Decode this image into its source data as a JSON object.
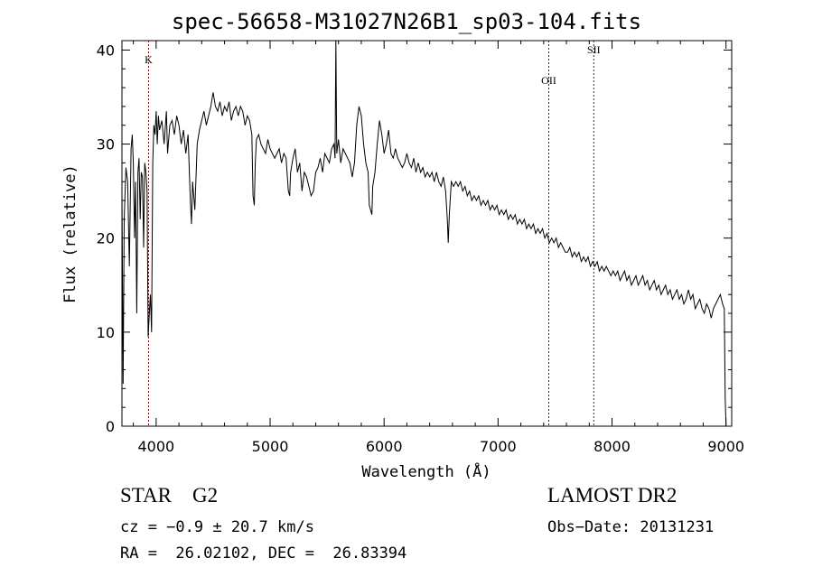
{
  "title": "spec-56658-M31027N26B1_sp03-104.fits",
  "info": {
    "object_class": "STAR",
    "subclass": "G2",
    "survey": "LAMOST DR2",
    "cz_line": "cz = −0.9 ± 20.7 km/s",
    "obs_date_line": "Obs−Date: 20131231",
    "radec_line": "RA =  26.02102, DEC =  26.83394"
  },
  "chart_data": {
    "type": "line",
    "title": "spec-56658-M31027N26B1_sp03-104.fits",
    "xlabel": "Wavelength (Å)",
    "ylabel": "Flux (relative)",
    "xlim": [
      3700,
      9050
    ],
    "ylim": [
      0,
      41
    ],
    "xticks": [
      4000,
      5000,
      6000,
      7000,
      8000,
      9000
    ],
    "yticks": [
      0,
      10,
      20,
      30,
      40
    ],
    "grid": false,
    "line_color": "#000000",
    "marker_color": "#8b0000",
    "lines": [
      {
        "label": "K",
        "x": 3934
      },
      {
        "label": "OII",
        "x": 7445
      },
      {
        "label": "SII",
        "x": 7840
      }
    ],
    "series": [
      {
        "points": [
          [
            3700,
            25.0
          ],
          [
            3710,
            4.5
          ],
          [
            3720,
            22.0
          ],
          [
            3735,
            27.5
          ],
          [
            3750,
            26.0
          ],
          [
            3765,
            17.0
          ],
          [
            3780,
            29.5
          ],
          [
            3790,
            31.0
          ],
          [
            3800,
            28.0
          ],
          [
            3810,
            20.0
          ],
          [
            3820,
            26.0
          ],
          [
            3830,
            12.0
          ],
          [
            3840,
            27.0
          ],
          [
            3850,
            28.5
          ],
          [
            3860,
            22.0
          ],
          [
            3870,
            27.0
          ],
          [
            3880,
            26.5
          ],
          [
            3890,
            19.0
          ],
          [
            3900,
            28.0
          ],
          [
            3910,
            27.0
          ],
          [
            3920,
            25.0
          ],
          [
            3930,
            9.5
          ],
          [
            3940,
            12.0
          ],
          [
            3950,
            14.0
          ],
          [
            3960,
            10.0
          ],
          [
            3970,
            28.0
          ],
          [
            3980,
            32.0
          ],
          [
            3990,
            31.0
          ],
          [
            4000,
            33.5
          ],
          [
            4010,
            30.0
          ],
          [
            4020,
            33.0
          ],
          [
            4030,
            31.5
          ],
          [
            4050,
            32.5
          ],
          [
            4070,
            30.0
          ],
          [
            4090,
            33.5
          ],
          [
            4100,
            29.0
          ],
          [
            4120,
            32.0
          ],
          [
            4140,
            32.5
          ],
          [
            4160,
            31.0
          ],
          [
            4180,
            33.0
          ],
          [
            4200,
            32.0
          ],
          [
            4220,
            30.0
          ],
          [
            4240,
            31.5
          ],
          [
            4260,
            29.0
          ],
          [
            4280,
            31.0
          ],
          [
            4300,
            24.0
          ],
          [
            4310,
            21.5
          ],
          [
            4320,
            26.0
          ],
          [
            4340,
            23.0
          ],
          [
            4360,
            30.0
          ],
          [
            4380,
            31.5
          ],
          [
            4400,
            32.5
          ],
          [
            4420,
            33.5
          ],
          [
            4440,
            32.0
          ],
          [
            4460,
            33.0
          ],
          [
            4480,
            34.0
          ],
          [
            4500,
            35.5
          ],
          [
            4520,
            34.0
          ],
          [
            4540,
            33.5
          ],
          [
            4560,
            34.5
          ],
          [
            4580,
            33.0
          ],
          [
            4600,
            34.0
          ],
          [
            4620,
            33.5
          ],
          [
            4640,
            34.5
          ],
          [
            4660,
            32.5
          ],
          [
            4680,
            33.5
          ],
          [
            4700,
            34.0
          ],
          [
            4720,
            33.0
          ],
          [
            4740,
            34.0
          ],
          [
            4760,
            33.5
          ],
          [
            4780,
            32.0
          ],
          [
            4800,
            33.0
          ],
          [
            4820,
            32.5
          ],
          [
            4840,
            31.0
          ],
          [
            4850,
            24.5
          ],
          [
            4861,
            23.5
          ],
          [
            4870,
            28.0
          ],
          [
            4880,
            30.5
          ],
          [
            4900,
            31.0
          ],
          [
            4920,
            30.0
          ],
          [
            4940,
            29.5
          ],
          [
            4960,
            29.0
          ],
          [
            4980,
            30.5
          ],
          [
            5000,
            29.5
          ],
          [
            5020,
            29.0
          ],
          [
            5040,
            28.5
          ],
          [
            5060,
            29.0
          ],
          [
            5080,
            29.5
          ],
          [
            5100,
            28.0
          ],
          [
            5120,
            29.0
          ],
          [
            5140,
            28.5
          ],
          [
            5160,
            25.0
          ],
          [
            5172,
            24.5
          ],
          [
            5180,
            27.0
          ],
          [
            5200,
            28.5
          ],
          [
            5220,
            29.5
          ],
          [
            5240,
            27.0
          ],
          [
            5260,
            28.0
          ],
          [
            5280,
            25.0
          ],
          [
            5300,
            27.0
          ],
          [
            5320,
            26.5
          ],
          [
            5340,
            25.5
          ],
          [
            5360,
            24.5
          ],
          [
            5380,
            25.0
          ],
          [
            5400,
            27.0
          ],
          [
            5420,
            27.5
          ],
          [
            5440,
            28.5
          ],
          [
            5460,
            27.0
          ],
          [
            5480,
            29.0
          ],
          [
            5500,
            28.5
          ],
          [
            5520,
            28.0
          ],
          [
            5540,
            29.5
          ],
          [
            5560,
            30.0
          ],
          [
            5570,
            28.5
          ],
          [
            5577,
            41.0
          ],
          [
            5585,
            29.0
          ],
          [
            5600,
            30.5
          ],
          [
            5620,
            28.0
          ],
          [
            5640,
            29.5
          ],
          [
            5660,
            29.0
          ],
          [
            5680,
            28.5
          ],
          [
            5700,
            28.0
          ],
          [
            5720,
            26.5
          ],
          [
            5740,
            28.0
          ],
          [
            5760,
            32.0
          ],
          [
            5780,
            34.0
          ],
          [
            5800,
            33.0
          ],
          [
            5820,
            30.0
          ],
          [
            5840,
            28.0
          ],
          [
            5860,
            27.0
          ],
          [
            5870,
            23.5
          ],
          [
            5893,
            22.5
          ],
          [
            5900,
            25.5
          ],
          [
            5920,
            27.0
          ],
          [
            5940,
            30.0
          ],
          [
            5960,
            32.5
          ],
          [
            5980,
            31.0
          ],
          [
            6000,
            29.0
          ],
          [
            6020,
            30.0
          ],
          [
            6040,
            31.5
          ],
          [
            6060,
            29.0
          ],
          [
            6080,
            28.5
          ],
          [
            6100,
            29.5
          ],
          [
            6120,
            28.5
          ],
          [
            6140,
            28.0
          ],
          [
            6160,
            27.5
          ],
          [
            6180,
            28.0
          ],
          [
            6200,
            29.0
          ],
          [
            6220,
            28.0
          ],
          [
            6240,
            27.5
          ],
          [
            6260,
            28.5
          ],
          [
            6280,
            27.0
          ],
          [
            6300,
            28.0
          ],
          [
            6320,
            27.0
          ],
          [
            6340,
            27.5
          ],
          [
            6360,
            26.5
          ],
          [
            6380,
            27.0
          ],
          [
            6400,
            26.5
          ],
          [
            6420,
            27.0
          ],
          [
            6440,
            26.0
          ],
          [
            6460,
            27.0
          ],
          [
            6480,
            26.0
          ],
          [
            6500,
            25.5
          ],
          [
            6520,
            26.5
          ],
          [
            6540,
            25.0
          ],
          [
            6555,
            22.0
          ],
          [
            6563,
            19.5
          ],
          [
            6572,
            22.5
          ],
          [
            6590,
            26.0
          ],
          [
            6610,
            25.5
          ],
          [
            6630,
            26.0
          ],
          [
            6650,
            25.5
          ],
          [
            6670,
            26.0
          ],
          [
            6690,
            25.0
          ],
          [
            6710,
            25.5
          ],
          [
            6730,
            24.5
          ],
          [
            6750,
            25.0
          ],
          [
            6770,
            24.0
          ],
          [
            6790,
            24.5
          ],
          [
            6810,
            24.0
          ],
          [
            6830,
            24.5
          ],
          [
            6850,
            23.5
          ],
          [
            6870,
            24.0
          ],
          [
            6890,
            23.5
          ],
          [
            6910,
            24.0
          ],
          [
            6930,
            23.0
          ],
          [
            6950,
            23.5
          ],
          [
            6970,
            23.0
          ],
          [
            6990,
            23.5
          ],
          [
            7010,
            22.5
          ],
          [
            7030,
            23.0
          ],
          [
            7050,
            22.5
          ],
          [
            7070,
            23.0
          ],
          [
            7090,
            22.0
          ],
          [
            7110,
            22.5
          ],
          [
            7130,
            22.0
          ],
          [
            7150,
            22.5
          ],
          [
            7170,
            21.5
          ],
          [
            7190,
            22.0
          ],
          [
            7210,
            21.5
          ],
          [
            7230,
            22.0
          ],
          [
            7250,
            21.0
          ],
          [
            7270,
            21.5
          ],
          [
            7290,
            21.0
          ],
          [
            7310,
            21.5
          ],
          [
            7330,
            20.5
          ],
          [
            7350,
            21.0
          ],
          [
            7370,
            20.5
          ],
          [
            7390,
            21.0
          ],
          [
            7410,
            20.0
          ],
          [
            7430,
            20.5
          ],
          [
            7450,
            19.5
          ],
          [
            7470,
            20.0
          ],
          [
            7490,
            19.5
          ],
          [
            7510,
            20.0
          ],
          [
            7530,
            19.0
          ],
          [
            7550,
            19.5
          ],
          [
            7570,
            19.0
          ],
          [
            7590,
            18.5
          ],
          [
            7610,
            18.5
          ],
          [
            7630,
            19.0
          ],
          [
            7650,
            18.0
          ],
          [
            7670,
            18.5
          ],
          [
            7690,
            18.0
          ],
          [
            7710,
            18.5
          ],
          [
            7730,
            17.5
          ],
          [
            7750,
            18.0
          ],
          [
            7770,
            17.5
          ],
          [
            7790,
            18.0
          ],
          [
            7810,
            17.0
          ],
          [
            7830,
            17.5
          ],
          [
            7850,
            17.0
          ],
          [
            7870,
            17.5
          ],
          [
            7890,
            16.5
          ],
          [
            7910,
            17.0
          ],
          [
            7930,
            16.5
          ],
          [
            7950,
            17.0
          ],
          [
            7970,
            16.5
          ],
          [
            7990,
            16.0
          ],
          [
            8010,
            16.5
          ],
          [
            8030,
            16.0
          ],
          [
            8050,
            16.5
          ],
          [
            8070,
            15.5
          ],
          [
            8090,
            16.0
          ],
          [
            8110,
            16.5
          ],
          [
            8130,
            15.5
          ],
          [
            8150,
            16.0
          ],
          [
            8170,
            15.0
          ],
          [
            8190,
            15.5
          ],
          [
            8210,
            16.0
          ],
          [
            8230,
            15.0
          ],
          [
            8250,
            15.5
          ],
          [
            8270,
            16.0
          ],
          [
            8290,
            15.0
          ],
          [
            8310,
            15.5
          ],
          [
            8330,
            14.5
          ],
          [
            8350,
            15.0
          ],
          [
            8370,
            15.5
          ],
          [
            8390,
            14.5
          ],
          [
            8410,
            15.0
          ],
          [
            8430,
            14.0
          ],
          [
            8450,
            14.5
          ],
          [
            8470,
            15.0
          ],
          [
            8490,
            14.0
          ],
          [
            8510,
            14.5
          ],
          [
            8530,
            13.5
          ],
          [
            8550,
            14.0
          ],
          [
            8570,
            14.5
          ],
          [
            8590,
            13.5
          ],
          [
            8610,
            14.0
          ],
          [
            8630,
            13.0
          ],
          [
            8650,
            13.5
          ],
          [
            8670,
            14.5
          ],
          [
            8690,
            13.5
          ],
          [
            8710,
            14.0
          ],
          [
            8730,
            12.5
          ],
          [
            8750,
            13.0
          ],
          [
            8770,
            13.5
          ],
          [
            8790,
            12.5
          ],
          [
            8810,
            12.0
          ],
          [
            8830,
            13.0
          ],
          [
            8850,
            12.5
          ],
          [
            8870,
            11.5
          ],
          [
            8890,
            12.5
          ],
          [
            8910,
            13.0
          ],
          [
            8930,
            13.5
          ],
          [
            8950,
            14.0
          ],
          [
            8970,
            13.0
          ],
          [
            8985,
            12.5
          ],
          [
            8993,
            3.0
          ],
          [
            9000,
            0.0
          ]
        ]
      }
    ]
  }
}
